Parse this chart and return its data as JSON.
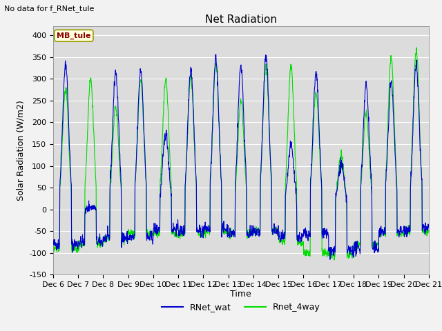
{
  "title": "Net Radiation",
  "ylabel": "Solar Radiation (W/m2)",
  "xlabel": "Time",
  "note": "No data for f_RNet_tule",
  "annotation": "MB_tule",
  "ylim": [
    -150,
    420
  ],
  "yticks": [
    -150,
    -100,
    -50,
    0,
    50,
    100,
    150,
    200,
    250,
    300,
    350,
    400
  ],
  "n_days": 15,
  "xtick_labels": [
    "Dec 6",
    "Dec 7",
    "Dec 8",
    "Dec 9",
    "Dec 10",
    "Dec 11",
    "Dec 12",
    "Dec 13",
    "Dec 14",
    "Dec 15",
    "Dec 16",
    "Dec 17",
    "Dec 18",
    "Dec 19",
    "Dec 20",
    "Dec 21"
  ],
  "color_blue": "#0000CC",
  "color_green": "#00DD00",
  "fig_bg": "#F2F2F2",
  "plot_bg": "#DCDCDC",
  "grid_color": "#FFFFFF",
  "legend_labels": [
    "RNet_wat",
    "Rnet_4way"
  ],
  "title_fontsize": 11,
  "label_fontsize": 9,
  "tick_fontsize": 8,
  "note_fontsize": 8,
  "annot_fontsize": 8,
  "peak_blue": [
    335,
    5,
    315,
    320,
    175,
    325,
    345,
    330,
    350,
    145,
    310,
    105,
    285,
    290,
    330
  ],
  "peak_green": [
    275,
    300,
    235,
    300,
    300,
    305,
    335,
    250,
    330,
    330,
    270,
    125,
    220,
    345,
    365
  ],
  "night_blue": [
    -80,
    -75,
    -65,
    -65,
    -45,
    -50,
    -45,
    -55,
    -50,
    -65,
    -55,
    -95,
    -90,
    -50,
    -45
  ],
  "night_green": [
    -90,
    -80,
    -70,
    -55,
    -55,
    -55,
    -50,
    -55,
    -50,
    -75,
    -100,
    -105,
    -80,
    -55,
    -50
  ]
}
